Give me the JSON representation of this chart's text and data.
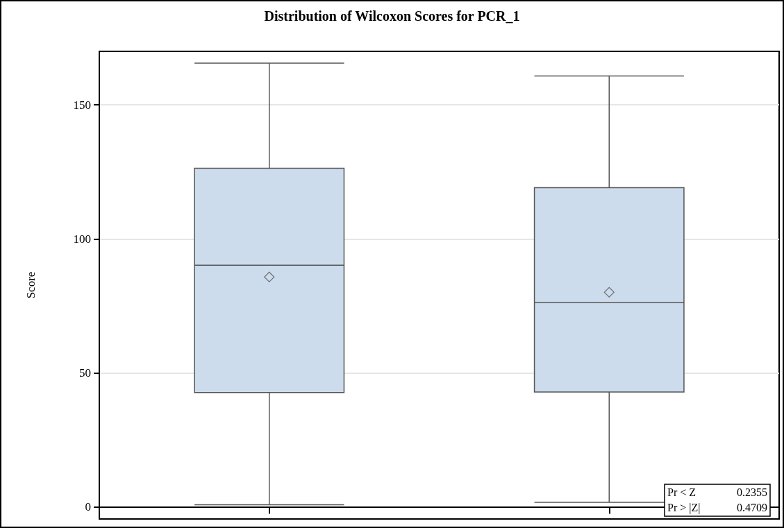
{
  "chart_data": {
    "type": "box",
    "title": "Distribution of Wilcoxon Scores for PCR_1",
    "ylabel": "Score",
    "categories": [
      null,
      null
    ],
    "boxes": [
      {
        "low": 0.8,
        "q1": 42.7,
        "median": 90.2,
        "q3": 126.4,
        "high": 165.6,
        "mean": 85.8
      },
      {
        "low": 1.7,
        "q1": 42.9,
        "median": 76.2,
        "q3": 119.1,
        "high": 160.8,
        "mean": 80.1
      }
    ],
    "color": "#cddcec",
    "ylim": [
      -4.5,
      170
    ],
    "yticks": [
      0,
      50,
      100,
      150
    ],
    "grid": "y",
    "marker": "diamond",
    "annotations": [
      "Pr < Z 0.2355",
      "Pr > |Z| 0.4709"
    ]
  }
}
